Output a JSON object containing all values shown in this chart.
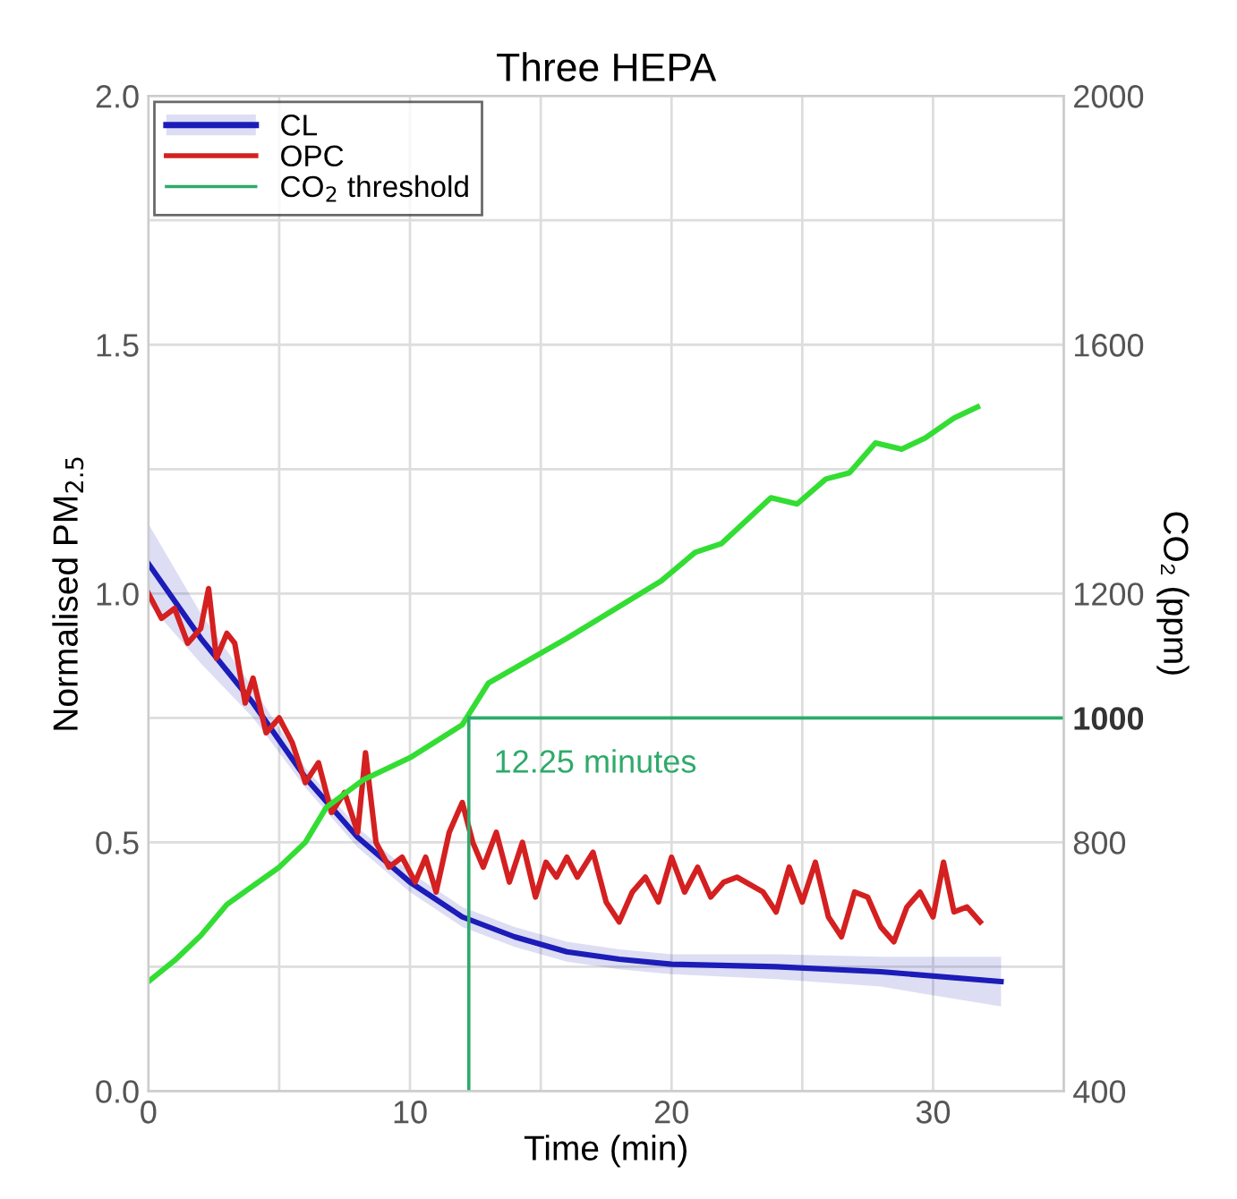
{
  "chart_data": {
    "type": "line",
    "title": "Three HEPA",
    "xlabel": "Time (min)",
    "ylabel": "Normalised PM$_{2.5}$",
    "y2label": "CO₂ (ppm)",
    "xlim": [
      0,
      35
    ],
    "xticks": [
      0,
      {
        "value": 5,
        "label": null
      },
      10,
      {
        "value": 15,
        "label": null
      },
      20,
      {
        "value": 25,
        "label": null
      },
      30,
      {
        "value": 35,
        "label": null
      }
    ],
    "ylim": [
      0,
      2
    ],
    "yticks": [
      {
        "value": 0,
        "label": "0.0"
      },
      {
        "value": 0.25,
        "label": null
      },
      0.5,
      {
        "value": 0.75,
        "label": null
      },
      {
        "value": 1,
        "label": "1.0"
      },
      {
        "value": 1.25,
        "label": null
      },
      1.5,
      {
        "value": 1.75,
        "label": null
      },
      {
        "value": 2,
        "label": "2.0"
      }
    ],
    "y2lim": [
      400,
      2000
    ],
    "y2ticks": [
      400,
      800,
      1000,
      1200,
      1600,
      2000
    ],
    "grid": true,
    "legend": "top left",
    "series": [
      {
        "name": "CL",
        "color": "#1c1cb8",
        "x": [
          0,
          2,
          4,
          6,
          8,
          10,
          12,
          14,
          16,
          18,
          20,
          24,
          28,
          32.6
        ],
        "values": [
          1.06,
          0.91,
          0.78,
          0.63,
          0.51,
          0.42,
          0.35,
          0.31,
          0.28,
          0.265,
          0.255,
          0.25,
          0.24,
          0.22
        ],
        "lower": [
          0.98,
          0.86,
          0.75,
          0.61,
          0.49,
          0.4,
          0.33,
          0.29,
          0.26,
          0.245,
          0.235,
          0.225,
          0.21,
          0.17
        ],
        "upper": [
          1.14,
          0.96,
          0.81,
          0.65,
          0.53,
          0.44,
          0.37,
          0.33,
          0.3,
          0.285,
          0.275,
          0.275,
          0.27,
          0.27
        ]
      },
      {
        "name": "OPC",
        "color": "#d42020",
        "x": [
          0,
          0.5,
          1,
          1.5,
          2,
          2.3,
          2.6,
          3,
          3.3,
          3.7,
          4,
          4.5,
          5,
          5.5,
          6,
          6.5,
          7,
          7.5,
          8,
          8.3,
          8.7,
          9.2,
          9.7,
          10.2,
          10.6,
          11,
          11.5,
          12,
          12.4,
          12.8,
          13.3,
          13.8,
          14.3,
          14.8,
          15.2,
          15.6,
          16,
          16.4,
          17,
          17.5,
          18,
          18.5,
          19,
          19.5,
          20,
          20.5,
          21,
          21.5,
          22,
          22.5,
          23.5,
          24,
          24.5,
          25,
          25.5,
          26,
          26.5,
          27,
          27.5,
          28,
          28.5,
          29,
          29.5,
          30,
          30.4,
          30.8,
          31.3,
          31.8
        ],
        "values": [
          1.0,
          0.95,
          0.97,
          0.9,
          0.93,
          1.01,
          0.87,
          0.92,
          0.9,
          0.78,
          0.83,
          0.72,
          0.75,
          0.7,
          0.62,
          0.66,
          0.56,
          0.6,
          0.52,
          0.68,
          0.5,
          0.45,
          0.47,
          0.42,
          0.47,
          0.4,
          0.52,
          0.58,
          0.5,
          0.45,
          0.52,
          0.42,
          0.5,
          0.39,
          0.46,
          0.43,
          0.47,
          0.43,
          0.48,
          0.38,
          0.34,
          0.4,
          0.43,
          0.38,
          0.47,
          0.4,
          0.45,
          0.39,
          0.42,
          0.43,
          0.4,
          0.36,
          0.45,
          0.38,
          0.46,
          0.35,
          0.31,
          0.4,
          0.39,
          0.33,
          0.3,
          0.37,
          0.4,
          0.35,
          0.46,
          0.36,
          0.37,
          0.34
        ]
      },
      {
        "color": "#33dd33",
        "axis": "y2",
        "x": [
          0,
          1,
          2,
          3,
          4,
          5,
          6,
          6.8,
          8.2,
          10,
          12,
          13,
          16,
          19.6,
          20.9,
          21.9,
          23.8,
          24.8,
          25.9,
          26.8,
          27.8,
          28.8,
          29.7,
          30.8,
          31.7
        ],
        "values": [
          576,
          610,
          650,
          700,
          730,
          760,
          800,
          856,
          900,
          936,
          989,
          1056,
          1128,
          1220,
          1266,
          1280,
          1354,
          1344,
          1384,
          1394,
          1442,
          1432,
          1450,
          1482,
          1500
        ]
      }
    ],
    "ref_lines": [
      {
        "axis": "y2",
        "value": 1000,
        "label": "CO$_{2}$ threshold",
        "color": "#2eaa6a"
      },
      {
        "axis": "x",
        "value": 12.25,
        "color": "#2eaa6a"
      }
    ],
    "annotations": [
      "12.25 minutes"
    ]
  }
}
